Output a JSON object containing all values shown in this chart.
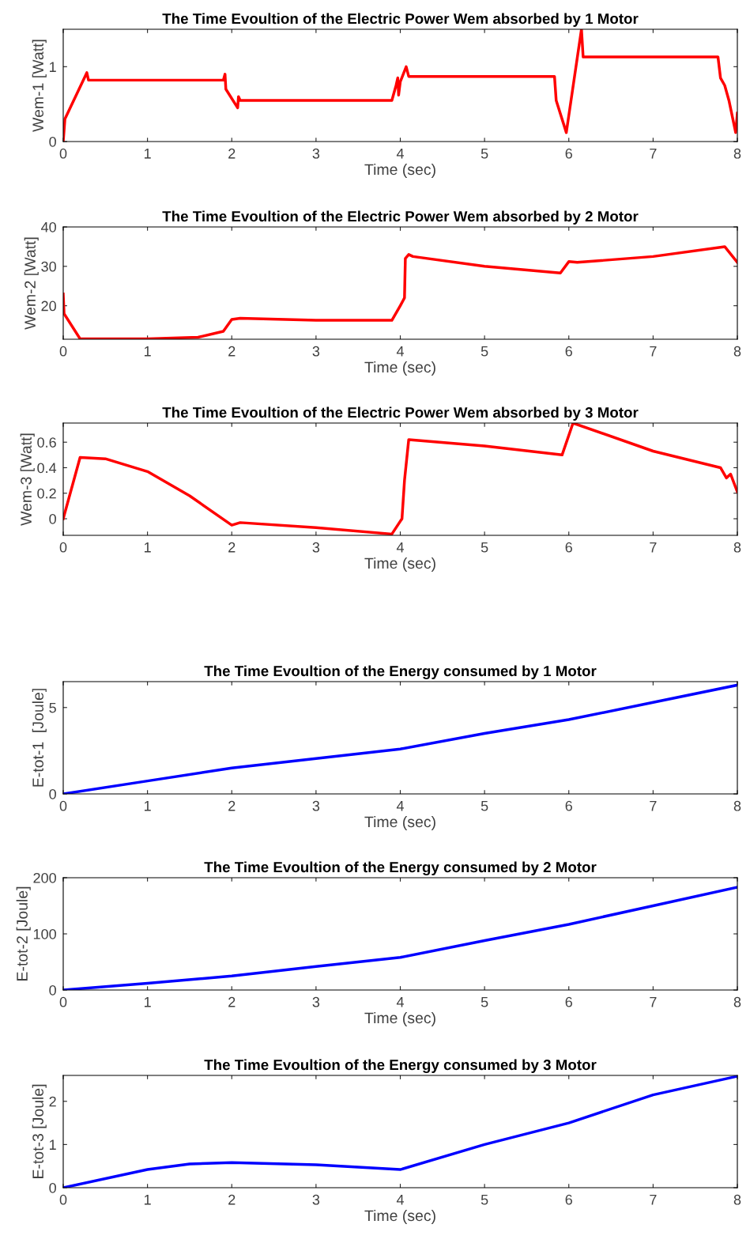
{
  "chart_data": [
    {
      "type": "line",
      "title": "The Time Evoultion of the Electric Power Wem absorbed by 1 Motor",
      "xlabel": "Time (sec)",
      "ylabel": "Wem-1 [Watt]",
      "xlim": [
        0,
        8
      ],
      "xticks": [
        0,
        1,
        2,
        3,
        4,
        5,
        6,
        7,
        8
      ],
      "ylim": [
        0,
        1.5
      ],
      "yticks": [
        0,
        1
      ],
      "series": [
        {
          "color": "#ff0000",
          "x": [
            0,
            0.02,
            0.28,
            0.3,
            1.9,
            1.92,
            1.93,
            2.07,
            2.08,
            2.1,
            3.9,
            3.95,
            3.97,
            3.98,
            4.0,
            4.07,
            4.1,
            5.83,
            5.85,
            5.97,
            6.15,
            6.17,
            7.77,
            7.8,
            7.85,
            7.9,
            7.98,
            8.0
          ],
          "values": [
            0,
            0.3,
            0.92,
            0.82,
            0.82,
            0.9,
            0.7,
            0.45,
            0.6,
            0.55,
            0.55,
            0.75,
            0.85,
            0.62,
            0.8,
            1.0,
            0.87,
            0.87,
            0.55,
            0.12,
            1.5,
            1.13,
            1.13,
            0.85,
            0.75,
            0.55,
            0.12,
            0.38
          ]
        }
      ]
    },
    {
      "type": "line",
      "title": "The Time Evoultion of the Electric Power Wem absorbed by 2 Motor",
      "xlabel": "Time (sec)",
      "ylabel": "Wem-2 [Watt]",
      "xlim": [
        0,
        8
      ],
      "xticks": [
        0,
        1,
        2,
        3,
        4,
        5,
        6,
        7,
        8
      ],
      "ylim": [
        11.5,
        40
      ],
      "yticks": [
        20,
        30,
        40
      ],
      "series": [
        {
          "color": "#ff0000",
          "x": [
            0,
            0.01,
            0.2,
            1.0,
            1.6,
            1.9,
            2.0,
            2.1,
            3.0,
            3.9,
            4.0,
            4.05,
            4.06,
            4.1,
            4.15,
            5.0,
            5.9,
            6.0,
            6.1,
            7.0,
            7.85,
            8.0
          ],
          "values": [
            23,
            18,
            11.6,
            11.6,
            12,
            13.5,
            16.5,
            16.8,
            16.3,
            16.3,
            20,
            22,
            32,
            33,
            32.5,
            30,
            28.3,
            31.2,
            31,
            32.5,
            35,
            31
          ]
        }
      ]
    },
    {
      "type": "line",
      "title": "The Time Evoultion of the Electric Power Wem absorbed by 3 Motor",
      "xlabel": "Time (sec)",
      "ylabel": "Wem-3 [Watt]",
      "xlim": [
        0,
        8
      ],
      "xticks": [
        0,
        1,
        2,
        3,
        4,
        5,
        6,
        7,
        8
      ],
      "ylim": [
        -0.13,
        0.75
      ],
      "yticks": [
        0,
        0.2,
        0.4,
        0.6
      ],
      "series": [
        {
          "color": "#ff0000",
          "x": [
            0,
            0.2,
            0.5,
            1.0,
            1.5,
            2.0,
            2.1,
            3.0,
            3.9,
            4.02,
            4.05,
            4.1,
            5.0,
            5.92,
            6.05,
            7.0,
            7.8,
            7.87,
            7.92,
            8.0
          ],
          "values": [
            0,
            0.48,
            0.47,
            0.37,
            0.18,
            -0.05,
            -0.03,
            -0.07,
            -0.12,
            0.0,
            0.3,
            0.62,
            0.57,
            0.5,
            0.75,
            0.53,
            0.4,
            0.32,
            0.35,
            0.21
          ]
        }
      ]
    },
    {
      "type": "line",
      "title": "The Time Evoultion of the Energy consumed by 1 Motor",
      "xlabel": "Time (sec)",
      "ylabel": "E-tot-1  [Joule]",
      "xlim": [
        0,
        8
      ],
      "xticks": [
        0,
        1,
        2,
        3,
        4,
        5,
        6,
        7,
        8
      ],
      "ylim": [
        0,
        6.5
      ],
      "yticks": [
        0,
        5
      ],
      "series": [
        {
          "color": "#0000ff",
          "x": [
            0,
            1,
            2,
            3,
            4,
            5,
            6,
            7,
            8
          ],
          "values": [
            0,
            0.75,
            1.5,
            2.05,
            2.6,
            3.5,
            4.3,
            5.3,
            6.3
          ]
        }
      ]
    },
    {
      "type": "line",
      "title": "The Time Evoultion of the Energy consumed by 2 Motor",
      "xlabel": "Time (sec)",
      "ylabel": "E-tot-2 [Joule]",
      "xlim": [
        0,
        8
      ],
      "xticks": [
        0,
        1,
        2,
        3,
        4,
        5,
        6,
        7,
        8
      ],
      "ylim": [
        0,
        200
      ],
      "yticks": [
        0,
        100,
        200
      ],
      "series": [
        {
          "color": "#0000ff",
          "x": [
            0,
            1,
            2,
            3,
            4,
            5,
            6,
            7,
            8
          ],
          "values": [
            0,
            12,
            25,
            42,
            58,
            88,
            117,
            150,
            183
          ]
        }
      ]
    },
    {
      "type": "line",
      "title": "The Time Evoultion of the Energy consumed by 3 Motor",
      "xlabel": "Time (sec)",
      "ylabel": "E-tot-3 [Joule]",
      "xlim": [
        0,
        8
      ],
      "xticks": [
        0,
        1,
        2,
        3,
        4,
        5,
        6,
        7,
        8
      ],
      "ylim": [
        0,
        2.6
      ],
      "yticks": [
        0,
        1,
        2
      ],
      "series": [
        {
          "color": "#0000ff",
          "x": [
            0,
            1,
            1.5,
            2,
            3,
            4,
            5,
            6,
            7,
            8
          ],
          "values": [
            0,
            0.42,
            0.55,
            0.58,
            0.53,
            0.42,
            1.0,
            1.5,
            2.15,
            2.58
          ]
        }
      ]
    }
  ]
}
